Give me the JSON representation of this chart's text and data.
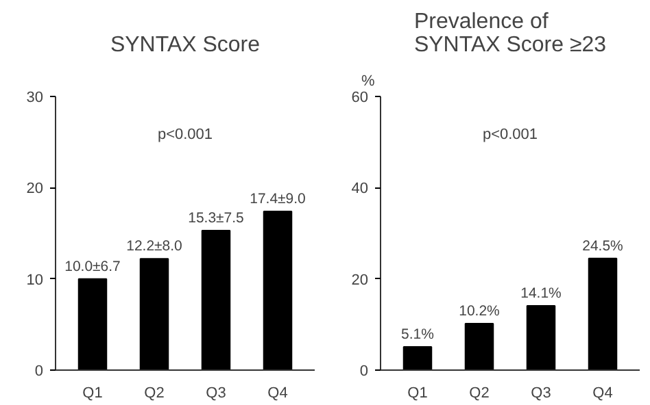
{
  "chart_data": [
    {
      "type": "bar",
      "title": "SYNTAX Score",
      "categories": [
        "Q1",
        "Q2",
        "Q3",
        "Q4"
      ],
      "values": [
        10.0,
        12.2,
        15.3,
        17.4
      ],
      "color": "#000000",
      "value_labels": [
        "10.0±6.7",
        "12.2±8.0",
        "15.3±7.5",
        "17.4±9.0"
      ],
      "ylim": [
        0,
        30
      ],
      "yticks": [
        0,
        10,
        20,
        30
      ],
      "grid": false,
      "annotations": [
        "p<0.001"
      ]
    },
    {
      "type": "bar",
      "title": "Prevalence of SYNTAX Score ≥23",
      "ylabel": "%",
      "categories": [
        "Q1",
        "Q2",
        "Q3",
        "Q4"
      ],
      "values": [
        5.1,
        10.2,
        14.1,
        24.5
      ],
      "color": "#000000",
      "value_labels": [
        "5.1%",
        "10.2%",
        "14.1%",
        "24.5%"
      ],
      "ylim": [
        0,
        60
      ],
      "yticks": [
        0,
        20,
        40,
        60
      ],
      "grid": false,
      "annotations": [
        "p<0.001"
      ]
    }
  ]
}
